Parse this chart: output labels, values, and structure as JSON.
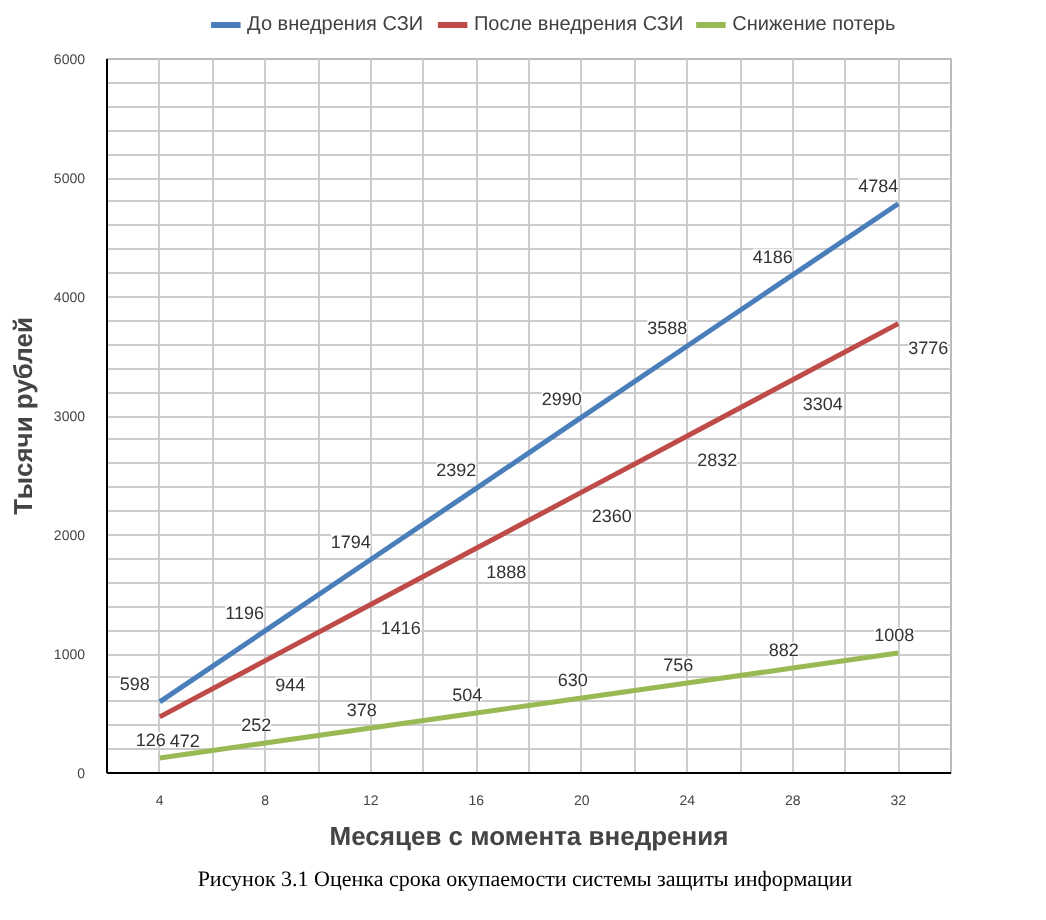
{
  "chart_data": {
    "type": "line",
    "xlabel": "Месяцев с момента внедрения",
    "ylabel": "Тысячи рублей",
    "x": [
      4,
      8,
      12,
      16,
      20,
      24,
      28,
      32
    ],
    "series": [
      {
        "name": "До внедрения СЗИ",
        "color": "#4a7ebb",
        "values": [
          598,
          1196,
          1794,
          2392,
          2990,
          3588,
          4186,
          4784
        ]
      },
      {
        "name": "После внедрения СЗИ",
        "color": "#be4b48",
        "values": [
          472,
          944,
          1416,
          1888,
          2360,
          2832,
          3304,
          3776
        ]
      },
      {
        "name": "Снижение потерь",
        "color": "#98b954",
        "values": [
          126,
          252,
          378,
          504,
          630,
          756,
          882,
          1008
        ]
      }
    ],
    "xlim": [
      2,
      34
    ],
    "xticks": [
      {
        "value": 2,
        "label": null
      },
      4,
      {
        "value": 6,
        "label": null
      },
      8,
      {
        "value": 10,
        "label": null
      },
      12,
      {
        "value": 14,
        "label": null
      },
      16,
      {
        "value": 18,
        "label": null
      },
      20,
      {
        "value": 22,
        "label": null
      },
      24,
      {
        "value": 26,
        "label": null
      },
      28,
      {
        "value": 30,
        "label": null
      },
      32,
      {
        "value": 34,
        "label": null
      }
    ],
    "ylim": [
      0,
      6000
    ],
    "yticks": [
      0,
      {
        "value": 200,
        "label": null
      },
      {
        "value": 400,
        "label": null
      },
      {
        "value": 600,
        "label": null
      },
      {
        "value": 800,
        "label": null
      },
      1000,
      {
        "value": 1200,
        "label": null
      },
      {
        "value": 1400,
        "label": null
      },
      {
        "value": 1600,
        "label": null
      },
      {
        "value": 1800,
        "label": null
      },
      2000,
      {
        "value": 2200,
        "label": null
      },
      {
        "value": 2400,
        "label": null
      },
      {
        "value": 2600,
        "label": null
      },
      {
        "value": 2800,
        "label": null
      },
      3000,
      {
        "value": 3200,
        "label": null
      },
      {
        "value": 3400,
        "label": null
      },
      {
        "value": 3600,
        "label": null
      },
      {
        "value": 3800,
        "label": null
      },
      4000,
      {
        "value": 4200,
        "label": null
      },
      {
        "value": 4400,
        "label": null
      },
      {
        "value": 4600,
        "label": null
      },
      {
        "value": 4800,
        "label": null
      },
      5000,
      {
        "value": 5200,
        "label": null
      },
      {
        "value": 5400,
        "label": null
      },
      {
        "value": 5600,
        "label": null
      },
      {
        "value": 5800,
        "label": null
      },
      6000
    ],
    "grid": true,
    "legend": "top",
    "marker": "none",
    "line_style": "solid",
    "data_labels": true,
    "annotations": [
      "Рисунок 3.1 Оценка срока окупаемости системы защиты информации"
    ]
  }
}
